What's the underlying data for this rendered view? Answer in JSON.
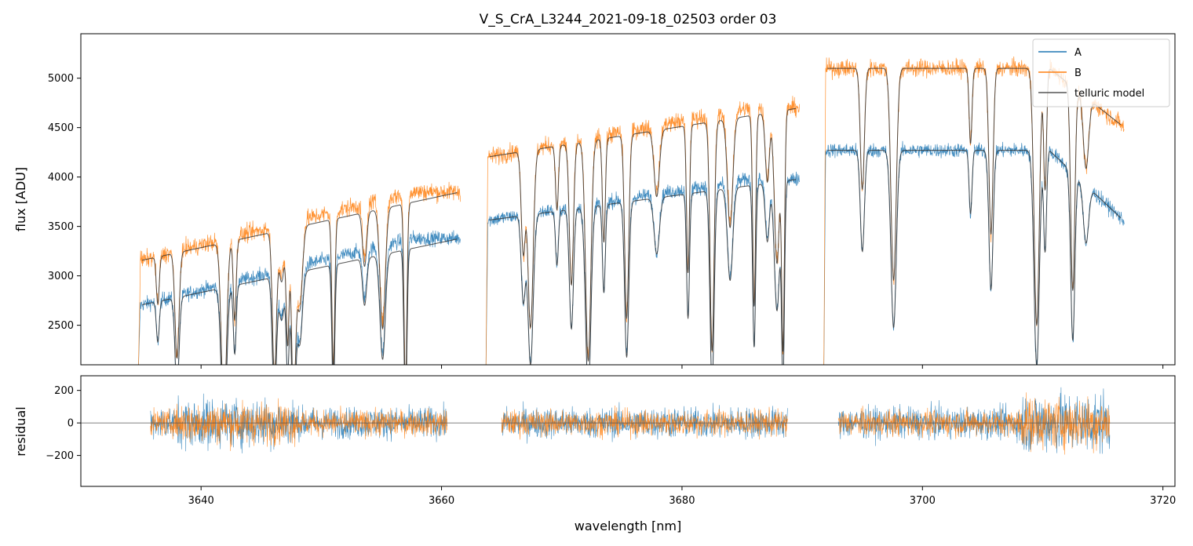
{
  "chart_data": [
    {
      "type": "line",
      "panel": "spectrum",
      "title": "V_S_CrA_L3244_2021-09-18_02503  order 03",
      "xlabel": "",
      "ylabel": "flux [ADU]",
      "xlim": [
        3630,
        3721
      ],
      "ylim": [
        2100,
        5450
      ],
      "yticks": [
        2500,
        3000,
        3500,
        4000,
        4500,
        5000
      ],
      "ytick_labels": [
        "2500",
        "3000",
        "3500",
        "4000",
        "4500",
        "5000"
      ],
      "legend": {
        "position": "top-right",
        "entries": [
          "A",
          "B",
          "telluric model"
        ]
      },
      "series": [
        {
          "name": "A",
          "color": "#1f77b4",
          "segments": [
            {
              "x_start": 3634.8,
              "x_end": 3661.6,
              "y_start": 2700,
              "y_end": 3380
            },
            {
              "x_start": 3663.7,
              "x_end": 3689.8,
              "y_start": 3560,
              "y_end": 3980
            },
            {
              "x_start": 3691.8,
              "x_end": 3716.8,
              "y_start": 4270,
              "y_end": 3550
            }
          ]
        },
        {
          "name": "B",
          "color": "#ff7f0e",
          "segments": [
            {
              "x_start": 3634.8,
              "x_end": 3661.6,
              "y_start": 3150,
              "y_end": 3850
            },
            {
              "x_start": 3663.7,
              "x_end": 3689.8,
              "y_start": 4200,
              "y_end": 4700
            },
            {
              "x_start": 3691.8,
              "x_end": 3716.8,
              "y_start": 5100,
              "y_end": 4500
            }
          ]
        },
        {
          "name": "telluric model",
          "color": "#333333",
          "absorption_lines_nm": [
            3636.4,
            3638.0,
            3641.9,
            3642.8,
            3646.1,
            3646.7,
            3647.2,
            3647.7,
            3648.2,
            3651.0,
            3653.6,
            3655.1,
            3657.0,
            3666.8,
            3667.4,
            3669.6,
            3670.8,
            3672.2,
            3673.5,
            3675.4,
            3677.9,
            3680.5,
            3682.5,
            3684.0,
            3686.0,
            3687.1,
            3687.9,
            3688.4,
            3695.0,
            3697.6,
            3704.0,
            3705.7,
            3709.5,
            3710.2,
            3712.5,
            3713.6
          ]
        }
      ]
    },
    {
      "type": "line",
      "panel": "residual",
      "xlabel": "wavelength [nm]",
      "ylabel": "residual",
      "xlim": [
        3630,
        3721
      ],
      "ylim": [
        -390,
        290
      ],
      "yticks": [
        -200,
        0,
        200
      ],
      "ytick_labels": [
        "−200",
        "0",
        "200"
      ],
      "xticks": [
        3640,
        3660,
        3680,
        3700,
        3720
      ],
      "xtick_labels": [
        "3640",
        "3660",
        "3680",
        "3700",
        "3720"
      ],
      "zero_line": true,
      "series": [
        {
          "name": "A",
          "color": "#1f77b4",
          "noise_amplitude": 90,
          "x_ranges": [
            [
              3635.8,
              3660.5
            ],
            [
              3665.0,
              3688.8
            ],
            [
              3693.0,
              3715.6
            ]
          ]
        },
        {
          "name": "B",
          "color": "#ff7f0e",
          "noise_amplitude": 75,
          "x_ranges": [
            [
              3635.8,
              3660.5
            ],
            [
              3665.0,
              3688.8
            ],
            [
              3693.0,
              3715.6
            ]
          ]
        }
      ]
    }
  ]
}
